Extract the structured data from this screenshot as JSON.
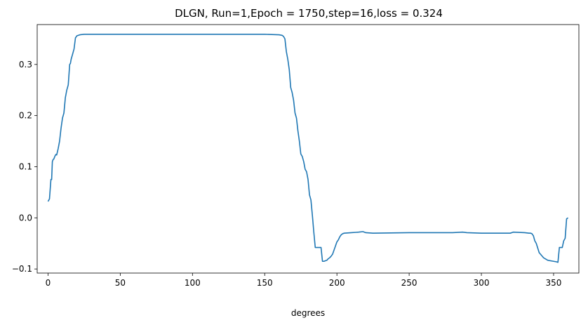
{
  "chart_data": {
    "type": "line",
    "title": "DLGN, Run=1,Epoch = 1750,step=16,loss = 0.324",
    "xlabel": "degrees",
    "ylabel": "",
    "xlim": [
      -7.5,
      367.5
    ],
    "ylim": [
      -0.108,
      0.378
    ],
    "x_ticks": [
      0,
      50,
      100,
      150,
      200,
      250,
      300,
      350
    ],
    "x_tick_labels": [
      "0",
      "50",
      "100",
      "150",
      "200",
      "250",
      "300",
      "350"
    ],
    "y_ticks": [
      -0.1,
      0.0,
      0.1,
      0.2,
      0.3
    ],
    "y_tick_labels": [
      "−0.1",
      "0.0",
      "0.1",
      "0.2",
      "0.3"
    ],
    "grid": false,
    "line_color": "#1f77b4",
    "series": [
      {
        "x": [
          0,
          1,
          2,
          2.5,
          3,
          3.5,
          4,
          5,
          5.5,
          6,
          7,
          8,
          9,
          10,
          11,
          12,
          13,
          14,
          15,
          15.5,
          16,
          17,
          18,
          19,
          20,
          22,
          25,
          30,
          40,
          60,
          100,
          150,
          160,
          162,
          163,
          164,
          165,
          166,
          167,
          168,
          169,
          170,
          171,
          172,
          173,
          174,
          175,
          176,
          177,
          178,
          179,
          180,
          181,
          182,
          183,
          184,
          185,
          186,
          187,
          188,
          189,
          190,
          191,
          192,
          193,
          194,
          195,
          196,
          197,
          198,
          199,
          200,
          201,
          202,
          203,
          204,
          205,
          210,
          215,
          218,
          220,
          225,
          250,
          280,
          287,
          290,
          300,
          320,
          322,
          330,
          333,
          334,
          335,
          336,
          337,
          338,
          340,
          343,
          346,
          350,
          352,
          353,
          354,
          355,
          356,
          357,
          358,
          359,
          360
        ],
        "y": [
          0.032,
          0.037,
          0.075,
          0.075,
          0.11,
          0.114,
          0.115,
          0.122,
          0.124,
          0.123,
          0.135,
          0.15,
          0.175,
          0.195,
          0.205,
          0.235,
          0.25,
          0.26,
          0.3,
          0.302,
          0.31,
          0.32,
          0.33,
          0.352,
          0.356,
          0.358,
          0.359,
          0.359,
          0.359,
          0.359,
          0.359,
          0.359,
          0.358,
          0.357,
          0.355,
          0.35,
          0.325,
          0.31,
          0.29,
          0.255,
          0.245,
          0.23,
          0.205,
          0.195,
          0.17,
          0.15,
          0.125,
          0.12,
          0.11,
          0.095,
          0.09,
          0.075,
          0.045,
          0.035,
          0.005,
          -0.028,
          -0.058,
          -0.058,
          -0.058,
          -0.058,
          -0.058,
          -0.085,
          -0.085,
          -0.084,
          -0.083,
          -0.08,
          -0.078,
          -0.075,
          -0.071,
          -0.063,
          -0.055,
          -0.047,
          -0.043,
          -0.037,
          -0.033,
          -0.031,
          -0.03,
          -0.029,
          -0.028,
          -0.027,
          -0.029,
          -0.03,
          -0.029,
          -0.029,
          -0.028,
          -0.029,
          -0.03,
          -0.03,
          -0.028,
          -0.029,
          -0.03,
          -0.03,
          -0.031,
          -0.035,
          -0.045,
          -0.05,
          -0.068,
          -0.078,
          -0.083,
          -0.085,
          -0.086,
          -0.087,
          -0.058,
          -0.058,
          -0.058,
          -0.045,
          -0.04,
          -0.002,
          0.0
        ]
      }
    ]
  }
}
